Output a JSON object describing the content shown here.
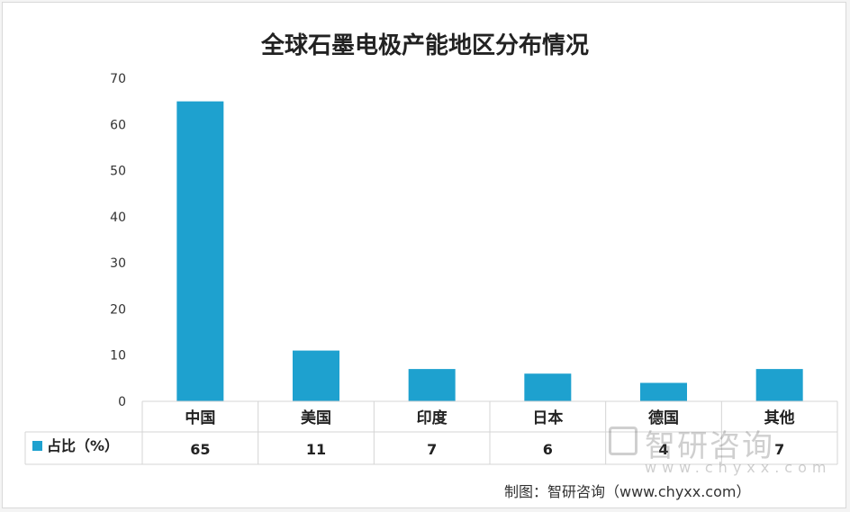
{
  "chart_data": {
    "type": "bar",
    "title": "全球石墨电极产能地区分布情况",
    "categories": [
      "中国",
      "美国",
      "印度",
      "日本",
      "德国",
      "其他"
    ],
    "series": [
      {
        "name": "占比（%）",
        "values": [
          65,
          11,
          7,
          6,
          4,
          7
        ],
        "color": "#1ea1cf"
      }
    ],
    "ylim": [
      0,
      70
    ],
    "yticks": [
      0,
      10,
      20,
      30,
      40,
      50,
      60,
      70
    ],
    "grid": false,
    "legend": "data-table",
    "data_table": true
  },
  "source": "制图：智研咨询（www.chyxx.com）",
  "watermark": {
    "name": "智研咨询",
    "url": "www.chyxx.com"
  }
}
